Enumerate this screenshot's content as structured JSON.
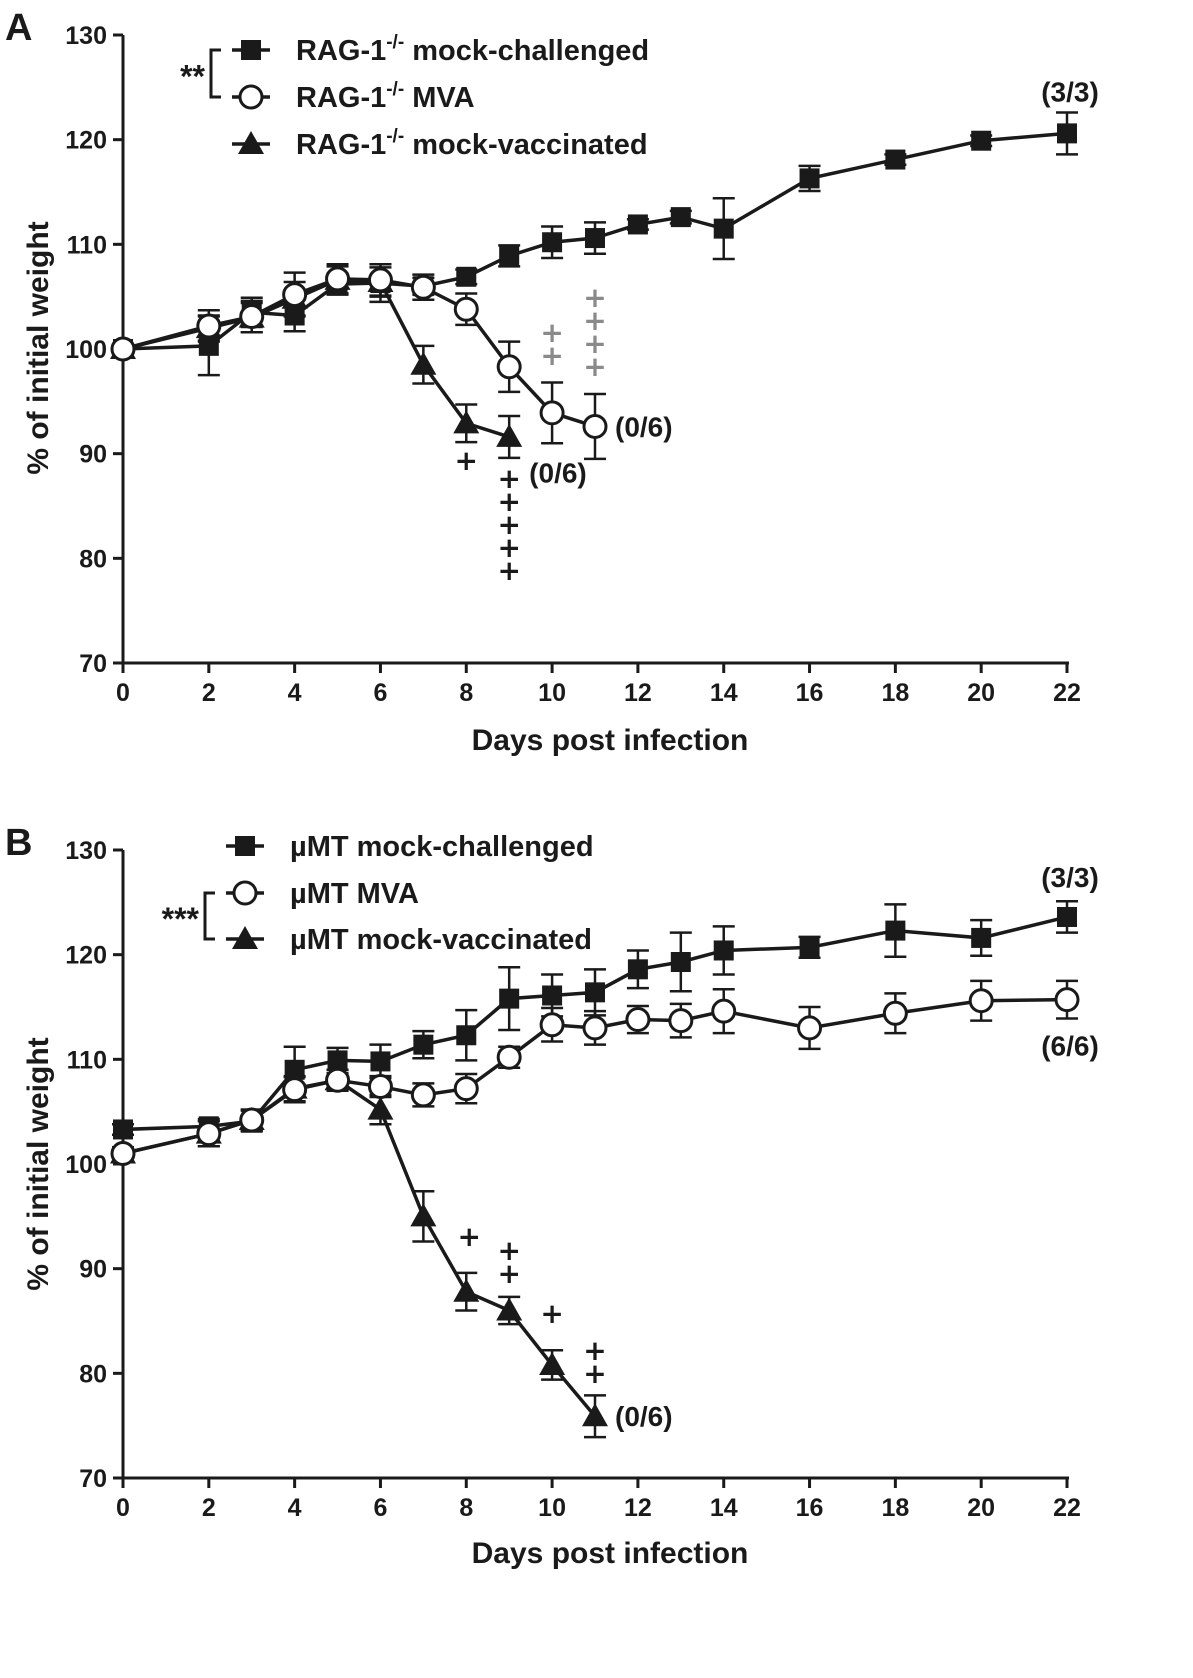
{
  "chart_data": [
    {
      "panel": "A",
      "type": "line",
      "xlabel": "Days post infection",
      "ylabel": "% of initial weight",
      "xlim": [
        0,
        22
      ],
      "ylim": [
        70,
        130
      ],
      "x_ticks": [
        0,
        2,
        4,
        6,
        8,
        10,
        12,
        14,
        16,
        18,
        20,
        22
      ],
      "y_ticks": [
        70,
        80,
        90,
        100,
        110,
        120,
        130
      ],
      "significance": "**",
      "series": [
        {
          "name_prefix": "RAG-1",
          "name_sup": "-/-",
          "name_suffix": " mock-challenged",
          "marker": "square",
          "x": [
            0,
            2,
            3,
            4,
            5,
            6,
            7,
            8,
            9,
            10,
            11,
            12,
            13,
            14,
            16,
            18,
            20,
            22
          ],
          "y": [
            100,
            100.3,
            103.5,
            103.2,
            106.2,
            106.3,
            106.0,
            106.9,
            108.9,
            110.2,
            110.6,
            111.9,
            112.6,
            111.5,
            116.3,
            118.1,
            119.9,
            120.6
          ],
          "err": [
            0,
            2.8,
            1.4,
            1.5,
            1.0,
            1.8,
            0.8,
            0.7,
            1.0,
            1.5,
            1.5,
            0.5,
            0.6,
            2.9,
            1.2,
            0.5,
            0.5,
            2.0
          ]
        },
        {
          "name_prefix": "RAG-1",
          "name_sup": "-/-",
          "name_suffix": " MVA",
          "marker": "circle",
          "x": [
            0,
            2,
            3,
            4,
            5,
            6,
            7,
            8,
            9,
            10,
            11
          ],
          "y": [
            100,
            102.2,
            103.1,
            105.2,
            106.7,
            106.6,
            105.9,
            103.8,
            98.3,
            93.9,
            92.6
          ],
          "err": [
            0,
            1.5,
            1.5,
            2.1,
            1.4,
            1.5,
            1.2,
            1.5,
            2.4,
            2.9,
            3.1
          ]
        },
        {
          "name_prefix": "RAG-1",
          "name_sup": "-/-",
          "name_suffix": " mock-vaccinated",
          "marker": "triangle",
          "x": [
            0,
            2,
            3,
            4,
            5,
            6,
            7,
            8,
            9
          ],
          "y": [
            100,
            102.0,
            103.0,
            104.8,
            106.6,
            106.4,
            98.5,
            92.9,
            91.6
          ],
          "err": [
            0,
            1.2,
            1.4,
            1.6,
            1.3,
            1.4,
            1.8,
            1.8,
            2.0
          ]
        }
      ],
      "survival_labels": [
        {
          "text": "(3/3)",
          "x": 22,
          "y": 124.6
        },
        {
          "text": "(0/6)",
          "x": 11,
          "y": 92.6
        },
        {
          "text": "(0/6)",
          "x": 9,
          "y": 88.2
        }
      ],
      "death_markers": [
        {
          "x": 8,
          "count": 1,
          "color": "#1a1a1a"
        },
        {
          "x": 9,
          "count": 5,
          "color": "#1a1a1a"
        },
        {
          "x": 10,
          "count": 2,
          "color": "#8a8a8a"
        },
        {
          "x": 11,
          "count": 4,
          "color": "#8a8a8a"
        }
      ]
    },
    {
      "panel": "B",
      "type": "line",
      "xlabel": "Days post infection",
      "ylabel": "% of initial weight",
      "xlim": [
        0,
        22
      ],
      "ylim": [
        70,
        130
      ],
      "x_ticks": [
        0,
        2,
        4,
        6,
        8,
        10,
        12,
        14,
        16,
        18,
        20,
        22
      ],
      "y_ticks": [
        70,
        80,
        90,
        100,
        110,
        120,
        130
      ],
      "significance": "***",
      "series": [
        {
          "name_prefix": "µMT mock-challenged",
          "name_sup": "",
          "name_suffix": "",
          "marker": "square",
          "x": [
            0,
            2,
            3,
            4,
            5,
            6,
            7,
            8,
            9,
            10,
            11,
            12,
            13,
            14,
            16,
            18,
            20,
            22
          ],
          "y": [
            103.3,
            103.6,
            104.1,
            109.0,
            109.9,
            109.8,
            111.4,
            112.3,
            115.8,
            116.1,
            116.4,
            118.6,
            119.3,
            120.4,
            120.7,
            122.3,
            121.6,
            123.6
          ],
          "err": [
            0.5,
            0.7,
            1.0,
            2.2,
            1.2,
            1.6,
            1.3,
            2.4,
            3.0,
            2.0,
            2.2,
            1.8,
            2.8,
            2.3,
            1.0,
            2.5,
            1.7,
            1.5
          ]
        },
        {
          "name_prefix": "µMT MVA",
          "name_sup": "",
          "name_suffix": "",
          "marker": "circle",
          "x": [
            0,
            2,
            3,
            4,
            5,
            6,
            7,
            8,
            9,
            10,
            11,
            12,
            13,
            14,
            16,
            18,
            20,
            22
          ],
          "y": [
            101.0,
            102.9,
            104.2,
            107.1,
            108.0,
            107.4,
            106.6,
            107.2,
            110.2,
            113.3,
            113.0,
            113.8,
            113.7,
            114.6,
            113.0,
            114.4,
            115.6,
            115.7
          ],
          "err": [
            0.6,
            1.2,
            1.0,
            1.2,
            1.0,
            1.0,
            1.1,
            1.4,
            1.0,
            1.6,
            1.6,
            1.3,
            1.6,
            2.1,
            2.0,
            1.9,
            1.9,
            1.8
          ]
        },
        {
          "name_prefix": "µMT mock-vaccinated",
          "name_sup": "",
          "name_suffix": "",
          "marker": "triangle",
          "x": [
            0,
            2,
            3,
            4,
            5,
            6,
            7,
            8,
            9,
            10,
            11
          ],
          "y": [
            101.0,
            102.9,
            104.2,
            107.2,
            108.0,
            105.2,
            95.0,
            87.8,
            86.0,
            80.8,
            75.9
          ],
          "err": [
            0.6,
            1.2,
            1.0,
            1.2,
            1.0,
            1.4,
            2.4,
            1.8,
            1.3,
            1.4,
            2.0
          ]
        }
      ],
      "survival_labels": [
        {
          "text": "(3/3)",
          "x": 22,
          "y": 127.4
        },
        {
          "text": "(6/6)",
          "x": 22,
          "y": 111.3
        },
        {
          "text": "(0/6)",
          "x": 11,
          "y": 75.9
        }
      ],
      "death_markers": [
        {
          "x": 8,
          "count": 1,
          "color": "#1a1a1a"
        },
        {
          "x": 9,
          "count": 2,
          "color": "#1a1a1a"
        },
        {
          "x": 10,
          "count": 1,
          "color": "#1a1a1a"
        },
        {
          "x": 11,
          "count": 2,
          "color": "#1a1a1a"
        }
      ]
    }
  ]
}
